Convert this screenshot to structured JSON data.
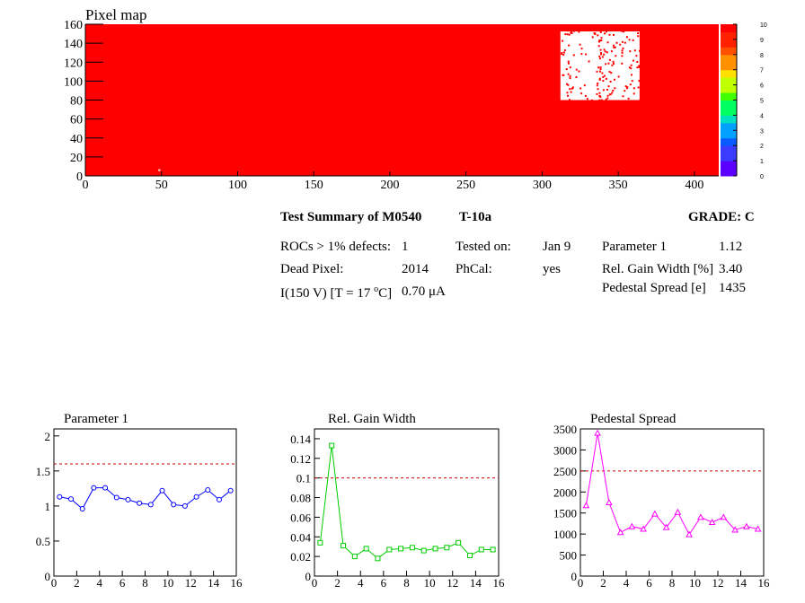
{
  "pixel_map": {
    "title": "Pixel map",
    "x_ticks": [
      "0",
      "50",
      "100",
      "150",
      "200",
      "250",
      "300",
      "350",
      "400"
    ],
    "y_ticks": [
      "0",
      "20",
      "40",
      "60",
      "80",
      "100",
      "120",
      "140",
      "160"
    ],
    "palette_ticks": [
      "0",
      "1",
      "2",
      "3",
      "4",
      "5",
      "6",
      "7",
      "8",
      "9",
      "10"
    ],
    "colors": {
      "background": "#ff0000",
      "dead_pixel": "#ffffff"
    }
  },
  "summary": {
    "title": "Test Summary of M0540",
    "test": "T-10a",
    "grade": "GRADE:  C",
    "rocs_label": "ROCs > 1% defects:",
    "rocs_value": "1",
    "dead_label": "Dead Pixel:",
    "dead_value": "2014",
    "current_label_pre": "I(150 V) [T = 17 ",
    "current_sup": "o",
    "current_label_post": "C]",
    "current_value": "0.70 μA",
    "tested_label": "Tested on:",
    "tested_value": "Jan 9",
    "phcal_label": "PhCal:",
    "phcal_value": "yes",
    "param1_label": "Parameter 1",
    "param1_value": "1.12",
    "gain_label": "Rel. Gain Width [%]",
    "gain_value": "3.40",
    "ped_label": "Pedestal Spread [e]",
    "ped_value": "1435"
  },
  "chart_data": [
    {
      "type": "line",
      "title": "Parameter 1",
      "color": "#0000ff",
      "marker": "circle",
      "x": [
        0.5,
        1.5,
        2.5,
        3.5,
        4.5,
        5.5,
        6.5,
        7.5,
        8.5,
        9.5,
        10.5,
        11.5,
        12.5,
        13.5,
        14.5,
        15.5
      ],
      "values": [
        1.13,
        1.1,
        0.96,
        1.26,
        1.26,
        1.12,
        1.09,
        1.04,
        1.02,
        1.22,
        1.02,
        1.0,
        1.13,
        1.23,
        1.09,
        1.22
      ],
      "xlim": [
        0,
        16
      ],
      "ylim": [
        0,
        2.1
      ],
      "x_ticks": [
        "0",
        "2",
        "4",
        "6",
        "8",
        "10",
        "12",
        "14",
        "16"
      ],
      "y_ticks": [
        "0",
        "0.5",
        "1",
        "1.5",
        "2"
      ],
      "threshold": 1.6
    },
    {
      "type": "line",
      "title": "Rel. Gain Width",
      "color": "#00cc00",
      "marker": "square",
      "x": [
        0.5,
        1.5,
        2.5,
        3.5,
        4.5,
        5.5,
        6.5,
        7.5,
        8.5,
        9.5,
        10.5,
        11.5,
        12.5,
        13.5,
        14.5,
        15.5
      ],
      "values": [
        0.034,
        0.133,
        0.031,
        0.02,
        0.028,
        0.018,
        0.027,
        0.028,
        0.029,
        0.026,
        0.028,
        0.029,
        0.034,
        0.021,
        0.027,
        0.027
      ],
      "xlim": [
        0,
        16
      ],
      "ylim": [
        0,
        0.15
      ],
      "x_ticks": [
        "0",
        "2",
        "4",
        "6",
        "8",
        "10",
        "12",
        "14",
        "16"
      ],
      "y_ticks": [
        "0",
        "0.02",
        "0.04",
        "0.06",
        "0.08",
        "0.1",
        "0.12",
        "0.14"
      ],
      "threshold": 0.1
    },
    {
      "type": "line",
      "title": "Pedestal Spread",
      "color": "#ff00ff",
      "marker": "triangle",
      "x": [
        0.5,
        1.5,
        2.5,
        3.5,
        4.5,
        5.5,
        6.5,
        7.5,
        8.5,
        9.5,
        10.5,
        11.5,
        12.5,
        13.5,
        14.5,
        15.5
      ],
      "values": [
        1680,
        3400,
        1750,
        1040,
        1180,
        1120,
        1480,
        1160,
        1520,
        990,
        1400,
        1280,
        1400,
        1100,
        1180,
        1120
      ],
      "xlim": [
        0,
        16
      ],
      "ylim": [
        0,
        3500
      ],
      "x_ticks": [
        "0",
        "2",
        "4",
        "6",
        "8",
        "10",
        "12",
        "14",
        "16"
      ],
      "y_ticks": [
        "0",
        "500",
        "1000",
        "1500",
        "2000",
        "2500",
        "3000",
        "3500"
      ],
      "threshold": 2500
    }
  ]
}
